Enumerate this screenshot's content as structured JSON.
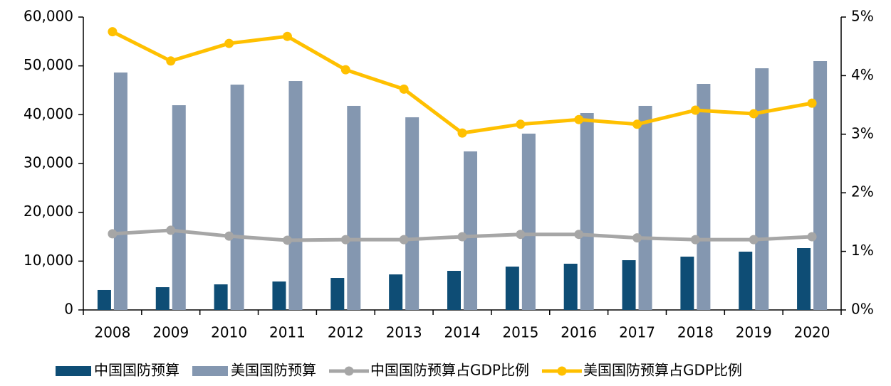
{
  "chart_data": {
    "type": "bar",
    "categories": [
      "2008",
      "2009",
      "2010",
      "2011",
      "2012",
      "2013",
      "2014",
      "2015",
      "2016",
      "2017",
      "2018",
      "2019",
      "2020"
    ],
    "series": [
      {
        "name": "中国国防预算",
        "type": "bar",
        "color": "#0e4d75",
        "values": [
          4080,
          4660,
          5240,
          5830,
          6550,
          7280,
          8010,
          8880,
          9470,
          10190,
          10920,
          11940,
          12670
        ]
      },
      {
        "name": "美国国防预算",
        "type": "bar",
        "color": "#8497b0",
        "values": [
          48640,
          41940,
          46160,
          46890,
          41800,
          39470,
          32480,
          36120,
          40340,
          41800,
          46310,
          49510,
          50970
        ]
      },
      {
        "name": "中国国防预算占GDP比例",
        "type": "line",
        "axis": "y2",
        "color": "#a6a6a6",
        "values": [
          1.3,
          1.36,
          1.26,
          1.19,
          1.2,
          1.2,
          1.25,
          1.29,
          1.29,
          1.23,
          1.2,
          1.2,
          1.25
        ]
      },
      {
        "name": "美国国防预算占GDP比例",
        "type": "line",
        "axis": "y2",
        "color": "#ffc000",
        "values": [
          4.75,
          4.25,
          4.55,
          4.67,
          4.1,
          3.77,
          3.02,
          3.17,
          3.25,
          3.17,
          3.41,
          3.35,
          3.53
        ]
      }
    ],
    "ylim": [
      0,
      60000
    ],
    "yticks": [
      0,
      {
        "value": 10000,
        "label": "10,000"
      },
      {
        "value": 20000,
        "label": "20,000"
      },
      {
        "value": 30000,
        "label": "30,000"
      },
      {
        "value": 40000,
        "label": "40,000"
      },
      {
        "value": 50000,
        "label": "50,000"
      },
      {
        "value": 60000,
        "label": "60,000"
      }
    ],
    "y2lim": [
      0,
      5
    ],
    "y2ticks": [
      {
        "value": 0,
        "label": "0%"
      },
      {
        "value": 1,
        "label": "1%"
      },
      {
        "value": 2,
        "label": "2%"
      },
      {
        "value": 3,
        "label": "3%"
      },
      {
        "value": 4,
        "label": "4%"
      },
      {
        "value": 5,
        "label": "5%"
      }
    ],
    "legend": "bottom",
    "grid": false
  }
}
